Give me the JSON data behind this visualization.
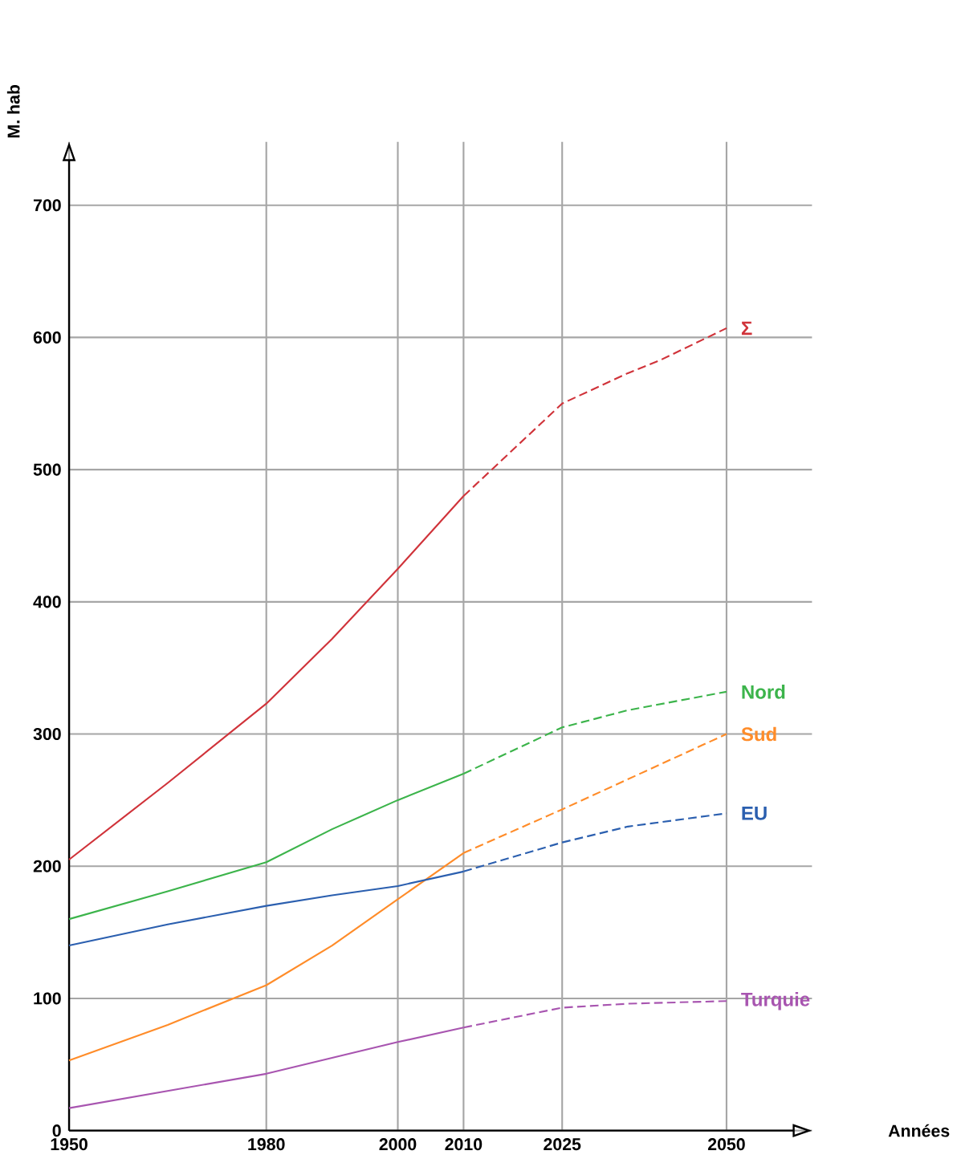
{
  "chart_data": {
    "type": "line",
    "xlabel": "Années",
    "ylabel": "M. hab",
    "xlim": [
      1950,
      2063
    ],
    "ylim": [
      0,
      748
    ],
    "xticks": [
      1950,
      1980,
      2000,
      2010,
      2025,
      2050
    ],
    "yticks": [
      0,
      100,
      200,
      300,
      400,
      500,
      600,
      700
    ],
    "grid": true,
    "series": [
      {
        "color": "#d0333a",
        "line_style": "solid",
        "x": [
          1950,
          1965,
          1980,
          1990,
          2000,
          2010
        ],
        "values": [
          205,
          263,
          323,
          372,
          425,
          480
        ]
      },
      {
        "name": "Σ",
        "color": "#d0333a",
        "line_style": "dashed",
        "x": [
          2010,
          2025,
          2035,
          2040,
          2050
        ],
        "values": [
          480,
          550,
          573,
          583,
          607
        ]
      },
      {
        "color": "#3cb44b",
        "line_style": "solid",
        "x": [
          1950,
          1965,
          1980,
          1990,
          2000,
          2010
        ],
        "values": [
          160,
          181,
          203,
          228,
          250,
          270
        ]
      },
      {
        "name": "Nord",
        "color": "#3cb44b",
        "line_style": "dashed",
        "x": [
          2010,
          2025,
          2035,
          2050
        ],
        "values": [
          270,
          305,
          318,
          332
        ]
      },
      {
        "color": "#ff8c29",
        "line_style": "solid",
        "x": [
          1950,
          1965,
          1980,
          1990,
          2000,
          2010
        ],
        "values": [
          53,
          80,
          110,
          140,
          175,
          210
        ]
      },
      {
        "name": "Sud",
        "color": "#ff8c29",
        "line_style": "dashed",
        "x": [
          2010,
          2025,
          2050
        ],
        "values": [
          210,
          243,
          300
        ]
      },
      {
        "color": "#2b5faf",
        "line_style": "solid",
        "x": [
          1950,
          1965,
          1980,
          1990,
          2000,
          2010
        ],
        "values": [
          140,
          156,
          170,
          178,
          185,
          196
        ]
      },
      {
        "name": "EU",
        "color": "#2b5faf",
        "line_style": "dashed",
        "x": [
          2010,
          2025,
          2035,
          2050
        ],
        "values": [
          196,
          218,
          230,
          240
        ]
      },
      {
        "color": "#a855b0",
        "line_style": "solid",
        "x": [
          1950,
          1965,
          1980,
          1990,
          2000,
          2010
        ],
        "values": [
          17,
          30,
          43,
          55,
          67,
          78
        ]
      },
      {
        "name": "Turquie",
        "color": "#a855b0",
        "line_style": "dashed",
        "x": [
          2010,
          2025,
          2035,
          2050
        ],
        "values": [
          78,
          93,
          96,
          98
        ]
      }
    ]
  }
}
